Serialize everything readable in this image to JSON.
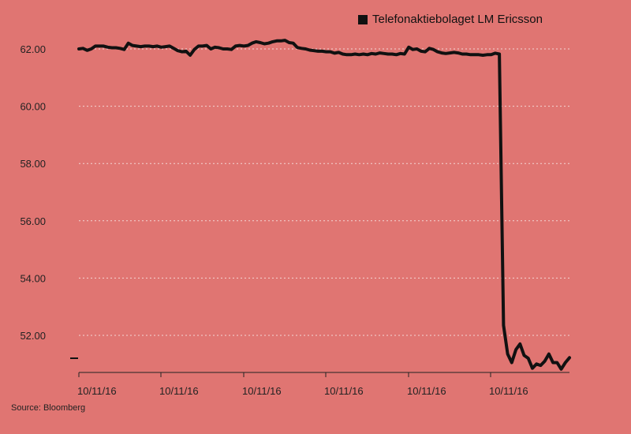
{
  "chart_data": {
    "type": "line",
    "title": "",
    "xlabel": "",
    "ylabel": "",
    "ylim": [
      50.8,
      62.4
    ],
    "yticks": [
      52.0,
      54.0,
      56.0,
      58.0,
      60.0,
      62.0
    ],
    "ytick_labels": [
      "52.00",
      "54.00",
      "56.00",
      "58.00",
      "60.00",
      "62.00"
    ],
    "xtick_labels": [
      "10/11/16",
      "10/11/16",
      "10/11/16",
      "10/11/16",
      "10/11/16",
      "10/11/16"
    ],
    "grid": true,
    "legend": "top-right",
    "series": [
      {
        "name": "Telefonaktiebolaget LM Ericsson",
        "color": "#111111",
        "values": [
          62.0,
          62.02,
          61.95,
          62.0,
          62.1,
          62.1,
          62.1,
          62.06,
          62.04,
          62.04,
          62.02,
          61.98,
          62.2,
          62.12,
          62.1,
          62.08,
          62.1,
          62.1,
          62.08,
          62.1,
          62.06,
          62.08,
          62.1,
          62.02,
          61.94,
          61.9,
          61.92,
          61.78,
          61.98,
          62.1,
          62.1,
          62.12,
          62.0,
          62.06,
          62.04,
          62.0,
          62.0,
          61.98,
          62.1,
          62.12,
          62.1,
          62.12,
          62.2,
          62.25,
          62.22,
          62.18,
          62.2,
          62.25,
          62.28,
          62.28,
          62.3,
          62.22,
          62.2,
          62.05,
          62.02,
          62.0,
          61.96,
          61.94,
          61.92,
          61.92,
          61.9,
          61.9,
          61.85,
          61.88,
          61.82,
          61.8,
          61.8,
          61.82,
          61.8,
          61.82,
          61.8,
          61.84,
          61.82,
          61.86,
          61.84,
          61.82,
          61.82,
          61.8,
          61.84,
          61.82,
          62.06,
          61.98,
          62.0,
          61.92,
          61.9,
          62.02,
          61.98,
          61.9,
          61.86,
          61.84,
          61.86,
          61.88,
          61.86,
          61.82,
          61.82,
          61.8,
          61.8,
          61.8,
          61.78,
          61.8,
          61.8,
          61.85,
          61.82,
          52.35,
          51.35,
          51.05,
          51.5,
          51.7,
          51.3,
          51.2,
          50.85,
          51.0,
          50.95,
          51.1,
          51.35,
          51.05,
          51.05,
          50.82,
          51.05,
          51.22
        ]
      }
    ],
    "source": "Source: Bloomberg"
  }
}
